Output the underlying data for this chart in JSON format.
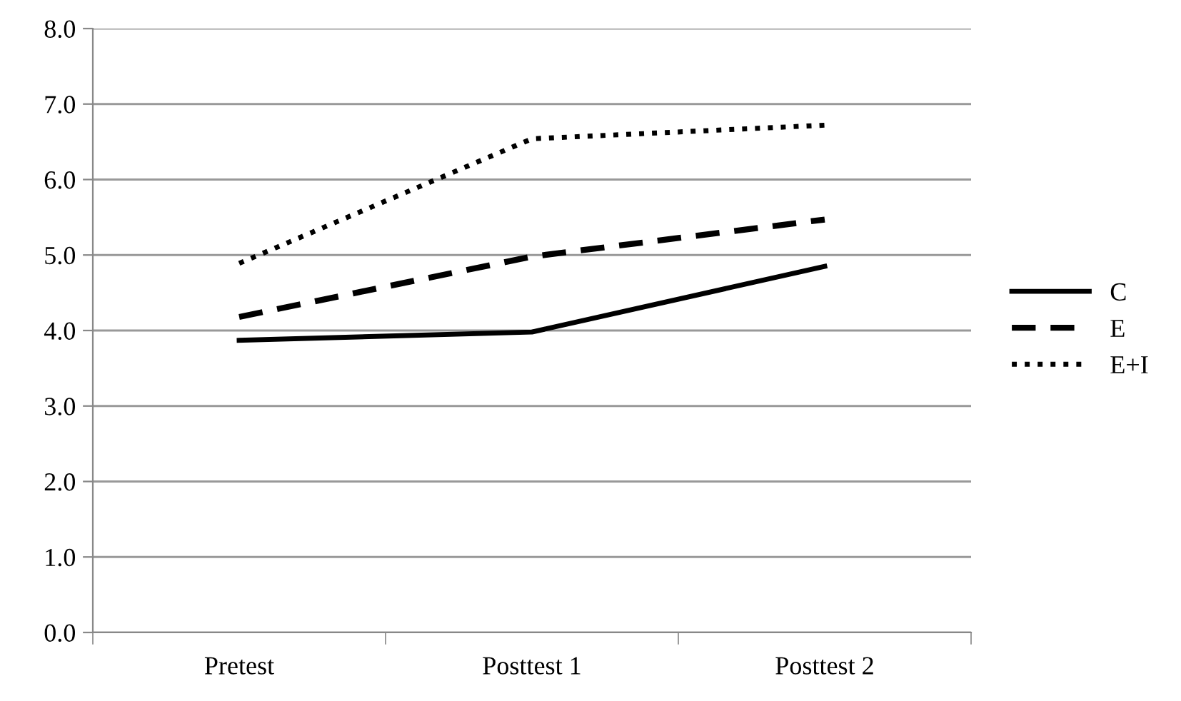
{
  "chart_data": {
    "type": "line",
    "categories": [
      "Pretest",
      "Posttest 1",
      "Posttest 2"
    ],
    "series": [
      {
        "name": "C",
        "color": "#000000",
        "values": [
          3.87,
          3.98,
          4.85
        ],
        "line_style": "solid"
      },
      {
        "name": "E",
        "color": "#000000",
        "values": [
          4.18,
          4.98,
          5.47
        ],
        "line_style": "dashed"
      },
      {
        "name": "E+I",
        "color": "#000000",
        "values": [
          4.89,
          6.54,
          6.72
        ],
        "line_style": "dotted"
      }
    ],
    "ylim": [
      0,
      8
    ],
    "yticks": [
      {
        "value": 0,
        "label": "0.0"
      },
      {
        "value": 1,
        "label": "1.0"
      },
      {
        "value": 2,
        "label": "2.0"
      },
      {
        "value": 3,
        "label": "3.0"
      },
      {
        "value": 4,
        "label": "4.0"
      },
      {
        "value": 5,
        "label": "5.0"
      },
      {
        "value": 6,
        "label": "6.0"
      },
      {
        "value": 7,
        "label": "7.0"
      },
      {
        "value": 8,
        "label": "8.0"
      }
    ],
    "grid": "y",
    "legend": "right",
    "marker": "none"
  }
}
